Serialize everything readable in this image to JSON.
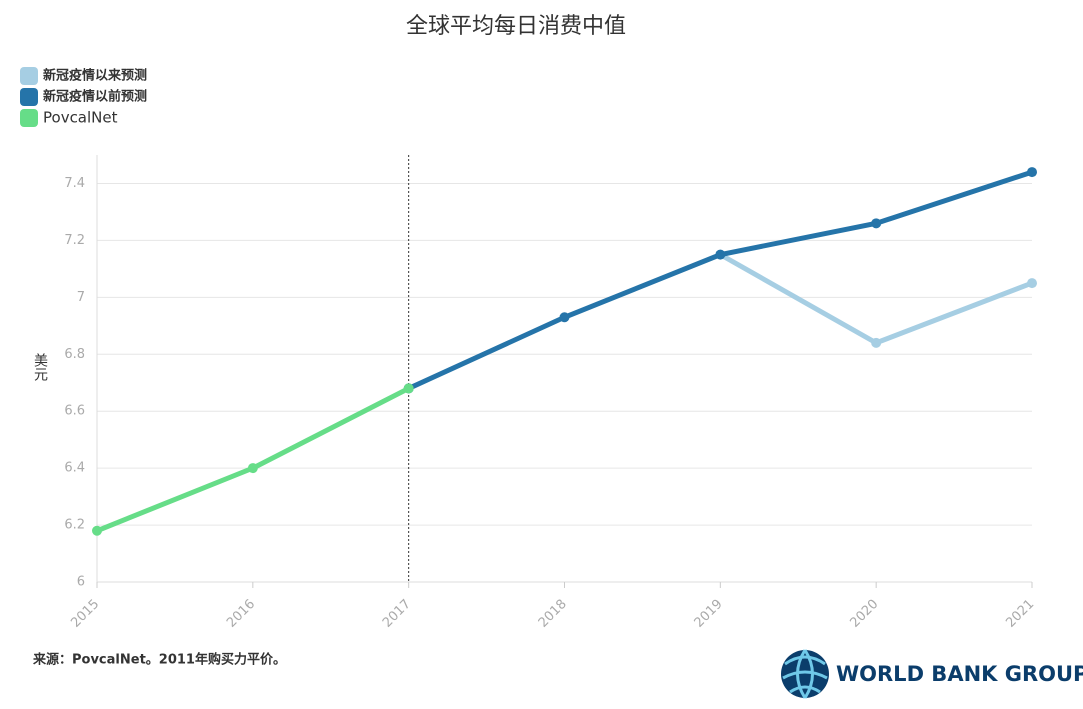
{
  "chart_data": {
    "type": "line",
    "title": "全球平均每日消费中值",
    "y_label": "美元",
    "source": "来源：PovcalNet。2011年购买力平价。",
    "logo": "WORLD BANK GROUP",
    "x": [
      2015,
      2016,
      2017,
      2018,
      2019,
      2020,
      2021
    ],
    "xlim": [
      2015,
      2021
    ],
    "ylim": [
      6,
      7.5
    ],
    "yticks": [
      6,
      6.2,
      6.4,
      6.6,
      6.8,
      7,
      7.2,
      7.4
    ],
    "grid": true,
    "vline": 2017,
    "legend": "top-left",
    "series": [
      {
        "name": "新冠疫情以来预测",
        "color": "#a6cee3",
        "values": [
          null,
          null,
          null,
          null,
          7.15,
          6.84,
          7.05
        ]
      },
      {
        "name": "新冠疫情以前预测",
        "color": "#2574a9",
        "values": [
          null,
          null,
          6.68,
          6.93,
          7.15,
          7.26,
          7.44
        ]
      },
      {
        "name": "PovcalNet",
        "color": "#66dd88",
        "values": [
          6.18,
          6.4,
          6.68,
          null,
          null,
          null,
          null
        ]
      }
    ]
  }
}
